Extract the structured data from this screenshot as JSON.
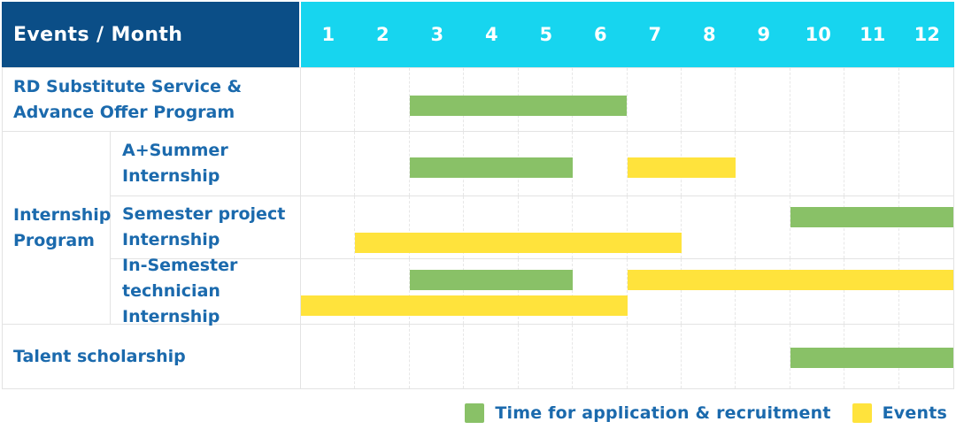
{
  "chart_data": {
    "type": "bar",
    "subtype": "gantt",
    "title": "Events / Month",
    "x_axis": {
      "label": "Month",
      "ticks": [
        "1",
        "2",
        "3",
        "4",
        "5",
        "6",
        "7",
        "8",
        "9",
        "10",
        "11",
        "12"
      ],
      "range": [
        1,
        12
      ]
    },
    "legend_position": "bottom-right",
    "legend": [
      {
        "name": "Time for application & recruitment",
        "color_key": "green",
        "color": "#89C167"
      },
      {
        "name": "Events",
        "color_key": "yellow",
        "color": "#FFE33C"
      }
    ],
    "rows": [
      {
        "group": "",
        "label": "RD Substitute Service & Advance Offer Program",
        "bars": [
          {
            "series": "Time for application & recruitment",
            "color_key": "green",
            "start_month": 3,
            "end_month": 6,
            "lane": "single"
          }
        ]
      },
      {
        "group": "Internship Program",
        "label": "A+Summer Internship",
        "bars": [
          {
            "series": "Time for application & recruitment",
            "color_key": "green",
            "start_month": 3,
            "end_month": 5,
            "lane": "single"
          },
          {
            "series": "Events",
            "color_key": "yellow",
            "start_month": 7,
            "end_month": 8,
            "lane": "single"
          }
        ]
      },
      {
        "group": "Internship Program",
        "label": "Semester project Internship",
        "bars": [
          {
            "series": "Time for application & recruitment",
            "color_key": "green",
            "start_month": 10,
            "end_month": 12,
            "lane": "top"
          },
          {
            "series": "Events",
            "color_key": "yellow",
            "start_month": 2,
            "end_month": 7,
            "lane": "bottom"
          }
        ]
      },
      {
        "group": "Internship Program",
        "label": "In-Semester technician Internship",
        "bars": [
          {
            "series": "Time for application & recruitment",
            "color_key": "green",
            "start_month": 3,
            "end_month": 5,
            "lane": "top"
          },
          {
            "series": "Events",
            "color_key": "yellow",
            "start_month": 7,
            "end_month": 12,
            "lane": "top"
          },
          {
            "series": "Events",
            "color_key": "yellow",
            "start_month": 1,
            "end_month": 6,
            "lane": "bottom"
          }
        ]
      },
      {
        "group": "",
        "label": "Talent scholarship",
        "bars": [
          {
            "series": "Time for application & recruitment",
            "color_key": "green",
            "start_month": 10,
            "end_month": 12,
            "lane": "single"
          }
        ]
      }
    ]
  },
  "ui": {
    "header": {
      "title": "Events / Month",
      "months": [
        "1",
        "2",
        "3",
        "4",
        "5",
        "6",
        "7",
        "8",
        "9",
        "10",
        "11",
        "12"
      ]
    },
    "rows": {
      "rd": {
        "line1": "RD Substitute Service &",
        "line2": "Advance Offer Program"
      },
      "group": {
        "line1": "Internship",
        "line2": "Program"
      },
      "summer": {
        "line1": "A+Summer",
        "line2": "Internship"
      },
      "semester": {
        "line1": "Semester project",
        "line2": "Internship"
      },
      "insem": {
        "line1": "In-Semester",
        "line2": "technician Internship"
      },
      "talent": {
        "line1": "Talent scholarship"
      }
    },
    "legend": {
      "green_label": "Time for application & recruitment",
      "yellow_label": "Events"
    },
    "colors": {
      "navy": "#0B4E87",
      "cyan": "#17D5EF",
      "blue_text": "#1B6AAD",
      "green": "#89C167",
      "yellow": "#FFE33C",
      "grid_line": "#E3E3E3"
    }
  }
}
